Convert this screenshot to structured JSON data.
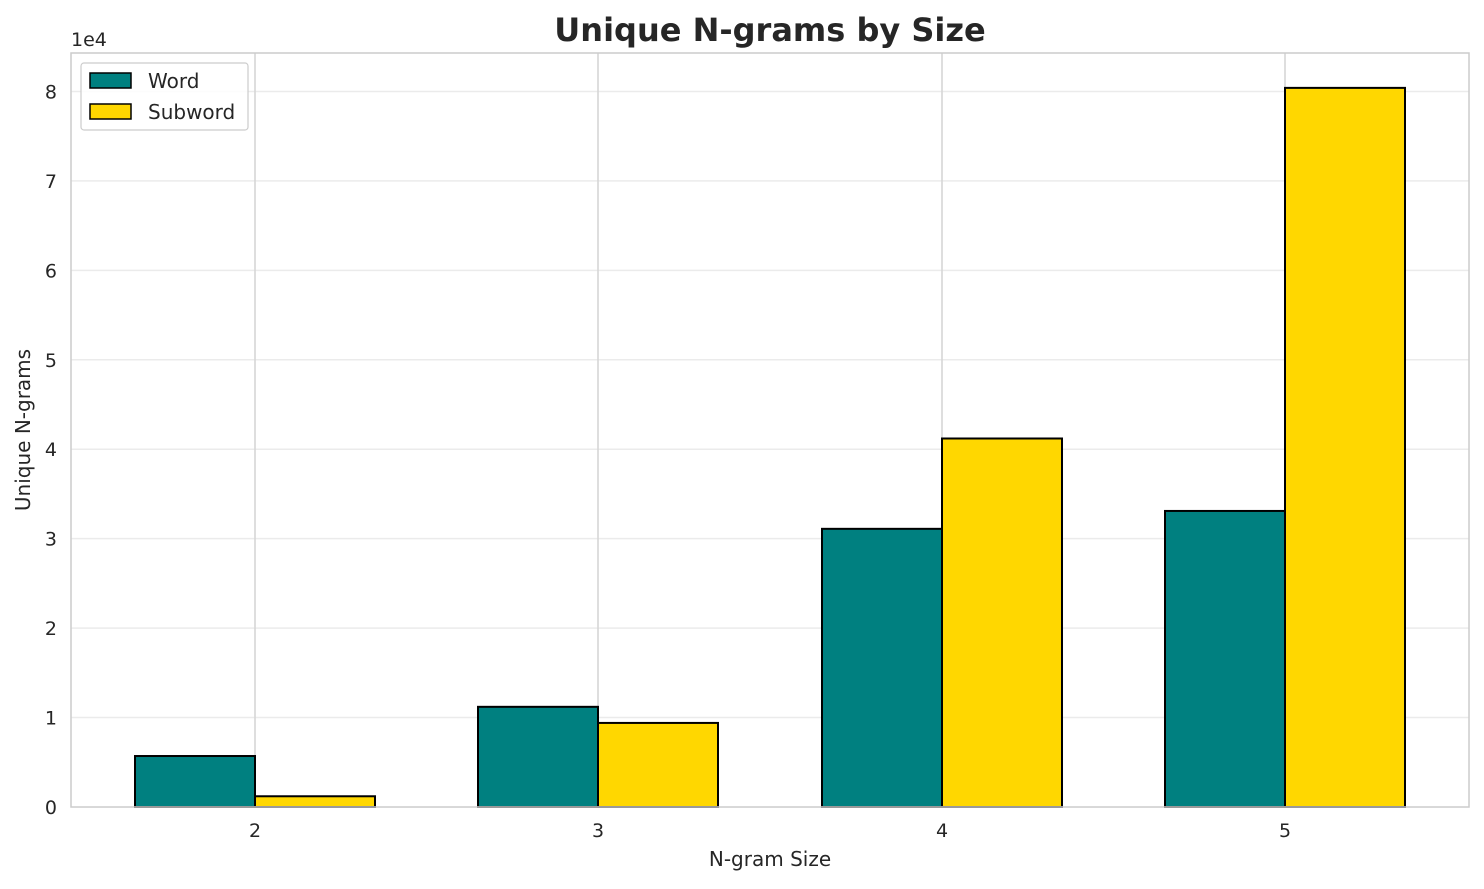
{
  "chart_data": {
    "type": "bar",
    "title": "Unique N-grams by Size",
    "xlabel": "N-gram Size",
    "ylabel": "Unique N-grams",
    "y_offset_label": "1e4",
    "categories": [
      "2",
      "3",
      "4",
      "5"
    ],
    "series": [
      {
        "name": "Word",
        "color": "#008080",
        "values": [
          5700,
          11200,
          31100,
          33100
        ]
      },
      {
        "name": "Subword",
        "color": "#FFD700",
        "values": [
          1200,
          9400,
          41200,
          80400
        ]
      }
    ],
    "ylim": [
      0,
      84300
    ],
    "y_ticks": [
      0,
      10000,
      20000,
      30000,
      40000,
      50000,
      60000,
      70000,
      80000
    ],
    "y_tick_labels": [
      "0",
      "1",
      "2",
      "3",
      "4",
      "5",
      "6",
      "7",
      "8"
    ],
    "grid": true,
    "legend_position": "upper-left"
  }
}
